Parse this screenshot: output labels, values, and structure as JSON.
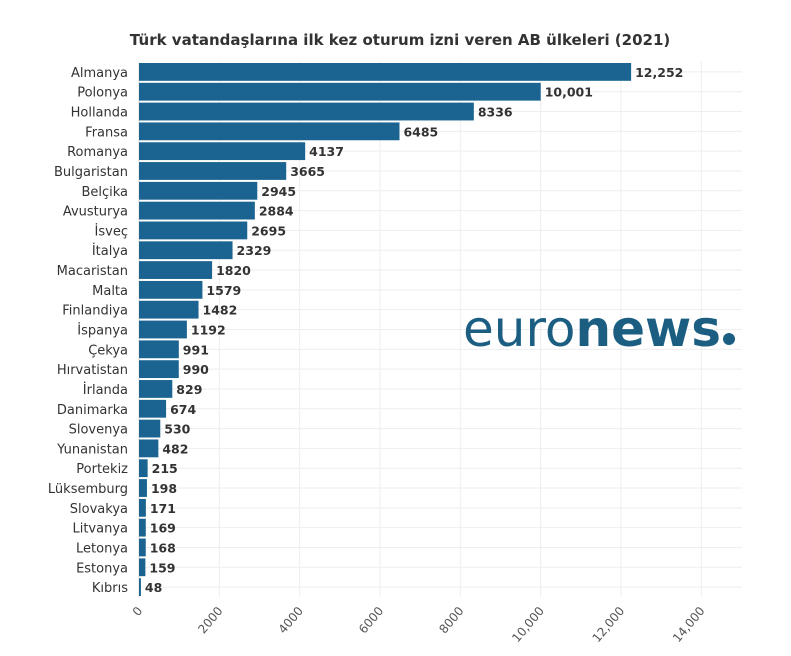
{
  "chart_data": {
    "type": "bar",
    "orientation": "horizontal",
    "title": "Türk vatandaşlarına ilk kez oturum izni veren AB ülkeleri (2021)",
    "xlabel": "",
    "ylabel": "",
    "xlim": [
      0,
      15000
    ],
    "grid": true,
    "categories": [
      "Almanya",
      "Polonya",
      "Hollanda",
      "Fransa",
      "Romanya",
      "Bulgaristan",
      "Belçika",
      "Avusturya",
      "İsveç",
      "İtalya",
      "Macaristan",
      "Malta",
      "Finlandiya",
      "İspanya",
      "Çekya",
      "Hırvatistan",
      "İrlanda",
      "Danimarka",
      "Slovenya",
      "Yunanistan",
      "Portekiz",
      "Lüksemburg",
      "Slovakya",
      "Litvanya",
      "Letonya",
      "Estonya",
      "Kıbrıs"
    ],
    "values": [
      12252,
      10001,
      8336,
      6485,
      4137,
      3665,
      2945,
      2884,
      2695,
      2329,
      1820,
      1579,
      1482,
      1192,
      991,
      990,
      829,
      674,
      530,
      482,
      215,
      198,
      171,
      169,
      168,
      159,
      48
    ],
    "data_labels": [
      "12,252",
      "10,001",
      "8336",
      "6485",
      "4137",
      "3665",
      "2945",
      "2884",
      "2695",
      "2329",
      "1820",
      "1579",
      "1482",
      "1192",
      "991",
      "990",
      "829",
      "674",
      "530",
      "482",
      "215",
      "198",
      "171",
      "169",
      "168",
      "159",
      "48"
    ],
    "x_ticks": [
      0,
      2000,
      4000,
      6000,
      8000,
      10000,
      12000,
      14000
    ],
    "x_tick_labels": [
      "0",
      "2000",
      "4000",
      "6000",
      "8000",
      "10,000",
      "12,000",
      "14,000"
    ],
    "bar_color": "#1b6491"
  },
  "logo": {
    "text_light": "euro",
    "text_bold": "news",
    "dot": ".",
    "color": "#1b5e82"
  }
}
